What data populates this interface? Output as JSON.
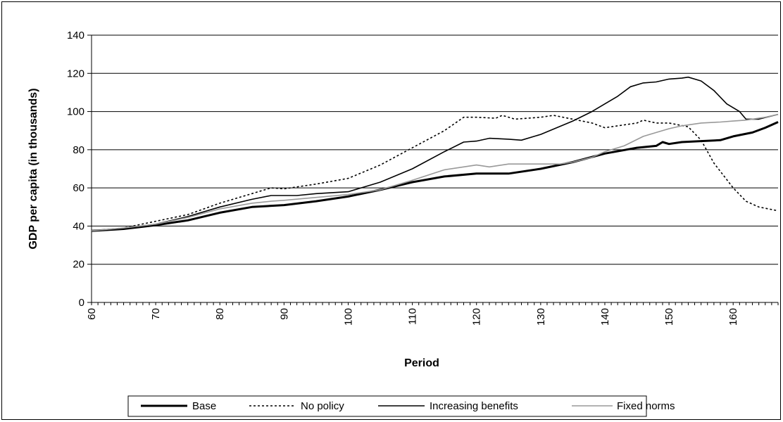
{
  "chart_data": {
    "type": "line",
    "title": "",
    "xlabel": "Period",
    "ylabel": "GDP per capita (in thousands)",
    "xlim": [
      60,
      167
    ],
    "ylim": [
      0,
      140
    ],
    "x_ticks": [
      60,
      70,
      80,
      90,
      100,
      110,
      120,
      130,
      140,
      150,
      160
    ],
    "y_ticks": [
      0,
      20,
      40,
      60,
      80,
      100,
      120,
      140
    ],
    "grid": "horizontal",
    "legend": "bottom",
    "series": [
      {
        "name": "Base",
        "color": "#000000",
        "style": "solid-thick",
        "points": [
          [
            60,
            37.5
          ],
          [
            65,
            38.5
          ],
          [
            70,
            40.5
          ],
          [
            75,
            43
          ],
          [
            80,
            47
          ],
          [
            85,
            50
          ],
          [
            90,
            51
          ],
          [
            95,
            53
          ],
          [
            100,
            55.5
          ],
          [
            105,
            59
          ],
          [
            110,
            63
          ],
          [
            115,
            66
          ],
          [
            120,
            67.5
          ],
          [
            125,
            67.5
          ],
          [
            130,
            70
          ],
          [
            135,
            73.5
          ],
          [
            140,
            78
          ],
          [
            145,
            81
          ],
          [
            148,
            82
          ],
          [
            149,
            84
          ],
          [
            150,
            83
          ],
          [
            152,
            84
          ],
          [
            155,
            84.5
          ],
          [
            158,
            85
          ],
          [
            160,
            87
          ],
          [
            163,
            89
          ],
          [
            165,
            91.5
          ],
          [
            167,
            94.5
          ]
        ]
      },
      {
        "name": "No policy",
        "color": "#000000",
        "style": "dotted",
        "points": [
          [
            60,
            37.5
          ],
          [
            65,
            39
          ],
          [
            70,
            42.5
          ],
          [
            75,
            46
          ],
          [
            80,
            52
          ],
          [
            85,
            57
          ],
          [
            88,
            60
          ],
          [
            90,
            59.5
          ],
          [
            95,
            62
          ],
          [
            100,
            65
          ],
          [
            105,
            72
          ],
          [
            110,
            81
          ],
          [
            115,
            90
          ],
          [
            118,
            97
          ],
          [
            120,
            97
          ],
          [
            123,
            96.5
          ],
          [
            124,
            98
          ],
          [
            126,
            96
          ],
          [
            130,
            97
          ],
          [
            132,
            98
          ],
          [
            135,
            96
          ],
          [
            138,
            94
          ],
          [
            140,
            91.5
          ],
          [
            142,
            92.5
          ],
          [
            145,
            94
          ],
          [
            146,
            95.5
          ],
          [
            148,
            94
          ],
          [
            150,
            94
          ],
          [
            153,
            92
          ],
          [
            155,
            85
          ],
          [
            157,
            73
          ],
          [
            160,
            60
          ],
          [
            162,
            53
          ],
          [
            164,
            50
          ],
          [
            167,
            48
          ]
        ]
      },
      {
        "name": "Increasing benefits",
        "color": "#000000",
        "style": "solid-thin",
        "points": [
          [
            60,
            37.5
          ],
          [
            65,
            38.5
          ],
          [
            70,
            41
          ],
          [
            75,
            45
          ],
          [
            80,
            50
          ],
          [
            85,
            54
          ],
          [
            88,
            56
          ],
          [
            92,
            56
          ],
          [
            95,
            57
          ],
          [
            100,
            58
          ],
          [
            105,
            63
          ],
          [
            110,
            70
          ],
          [
            115,
            79
          ],
          [
            118,
            84
          ],
          [
            120,
            84.5
          ],
          [
            122,
            86
          ],
          [
            125,
            85.5
          ],
          [
            127,
            85
          ],
          [
            130,
            88
          ],
          [
            135,
            95
          ],
          [
            138,
            100
          ],
          [
            140,
            104
          ],
          [
            142,
            108
          ],
          [
            144,
            113
          ],
          [
            146,
            115
          ],
          [
            148,
            115.5
          ],
          [
            150,
            117
          ],
          [
            152,
            117.5
          ],
          [
            153,
            118
          ],
          [
            155,
            116
          ],
          [
            157,
            111
          ],
          [
            159,
            104
          ],
          [
            161,
            100
          ],
          [
            162,
            96
          ],
          [
            164,
            96
          ],
          [
            167,
            98.5
          ]
        ]
      },
      {
        "name": "Fixed norms",
        "color": "#999999",
        "style": "solid-thin",
        "points": [
          [
            60,
            37.5
          ],
          [
            65,
            39
          ],
          [
            70,
            41
          ],
          [
            75,
            44.5
          ],
          [
            80,
            49
          ],
          [
            85,
            52
          ],
          [
            88,
            53
          ],
          [
            90,
            53.5
          ],
          [
            95,
            55
          ],
          [
            100,
            56.5
          ],
          [
            105,
            59
          ],
          [
            110,
            64
          ],
          [
            115,
            69.5
          ],
          [
            118,
            71
          ],
          [
            120,
            72
          ],
          [
            122,
            71
          ],
          [
            125,
            72.5
          ],
          [
            130,
            72.5
          ],
          [
            133,
            72.5
          ],
          [
            135,
            73.5
          ],
          [
            138,
            76
          ],
          [
            140,
            79
          ],
          [
            143,
            82
          ],
          [
            146,
            87
          ],
          [
            148,
            89
          ],
          [
            150,
            91
          ],
          [
            152,
            92.5
          ],
          [
            155,
            94
          ],
          [
            158,
            94.5
          ],
          [
            160,
            95
          ],
          [
            162,
            95.5
          ],
          [
            165,
            97
          ],
          [
            167,
            98.5
          ]
        ]
      }
    ]
  }
}
